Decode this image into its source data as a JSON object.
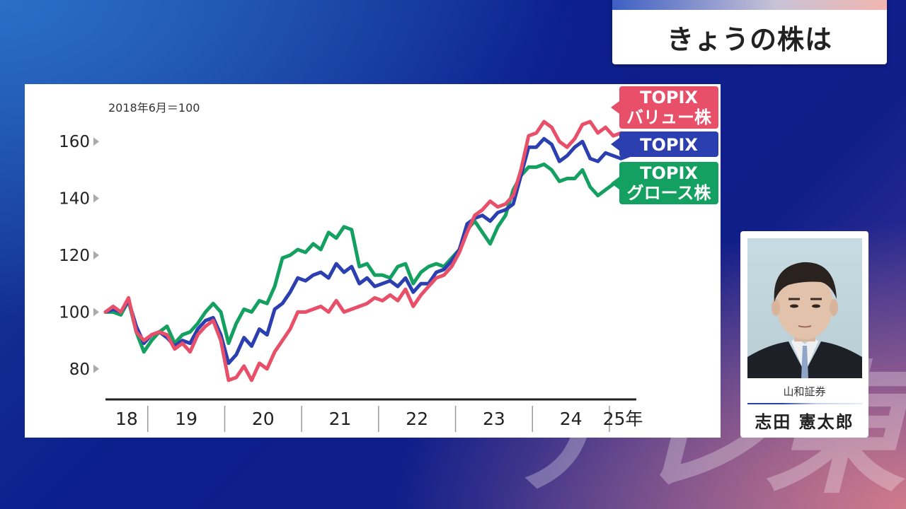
{
  "header": {
    "title": "きょうの株は"
  },
  "watermark": "テレ東",
  "chart_data": {
    "type": "line",
    "note": "2018年6月＝100",
    "y_ticks": [
      "80",
      "100",
      "120",
      "140",
      "160"
    ],
    "ylim": [
      70,
      170
    ],
    "x_tick_labels": [
      "18",
      "19",
      "20",
      "21",
      "22",
      "23",
      "24",
      "25年"
    ],
    "xlim": [
      2018.45,
      2025.35
    ],
    "series": [
      {
        "name": "TOPIX バリュー株",
        "label_lines": [
          "TOPIX",
          "バリュー株"
        ],
        "color": "#e8506a",
        "x": [
          2018.45,
          2018.55,
          2018.65,
          2018.75,
          2018.85,
          2018.95,
          2019.05,
          2019.15,
          2019.25,
          2019.35,
          2019.45,
          2019.55,
          2019.65,
          2019.75,
          2019.85,
          2019.95,
          2020.05,
          2020.15,
          2020.25,
          2020.35,
          2020.45,
          2020.55,
          2020.65,
          2020.75,
          2020.85,
          2020.95,
          2021.05,
          2021.15,
          2021.25,
          2021.35,
          2021.45,
          2021.55,
          2021.65,
          2021.75,
          2021.85,
          2021.95,
          2022.05,
          2022.15,
          2022.25,
          2022.35,
          2022.45,
          2022.55,
          2022.65,
          2022.75,
          2022.85,
          2022.95,
          2023.05,
          2023.15,
          2023.25,
          2023.35,
          2023.45,
          2023.55,
          2023.65,
          2023.75,
          2023.85,
          2023.95,
          2024.05,
          2024.15,
          2024.25,
          2024.35,
          2024.45,
          2024.55,
          2024.65,
          2024.75,
          2024.85,
          2024.95,
          2025.05,
          2025.15,
          2025.25
        ],
        "values": [
          100,
          102,
          100,
          105,
          93,
          90,
          92,
          93,
          92,
          87,
          89,
          86,
          92,
          95,
          97,
          90,
          76,
          77,
          81,
          76,
          82,
          80,
          86,
          90,
          94,
          100,
          100,
          101,
          102,
          100,
          104,
          100,
          101,
          102,
          103,
          105,
          104,
          106,
          104,
          108,
          102,
          106,
          109,
          112,
          113,
          116,
          121,
          128,
          134,
          136,
          139,
          137,
          138,
          141,
          150,
          162,
          163,
          167,
          165,
          160,
          158,
          161,
          166,
          167,
          163,
          165,
          162,
          163,
          162
        ]
      },
      {
        "name": "TOPIX",
        "label_lines": [
          "TOPIX"
        ],
        "color": "#2b3fb0",
        "x": [
          2018.45,
          2018.55,
          2018.65,
          2018.75,
          2018.85,
          2018.95,
          2019.05,
          2019.15,
          2019.25,
          2019.35,
          2019.45,
          2019.55,
          2019.65,
          2019.75,
          2019.85,
          2019.95,
          2020.05,
          2020.15,
          2020.25,
          2020.35,
          2020.45,
          2020.55,
          2020.65,
          2020.75,
          2020.85,
          2020.95,
          2021.05,
          2021.15,
          2021.25,
          2021.35,
          2021.45,
          2021.55,
          2021.65,
          2021.75,
          2021.85,
          2021.95,
          2022.05,
          2022.15,
          2022.25,
          2022.35,
          2022.45,
          2022.55,
          2022.65,
          2022.75,
          2022.85,
          2022.95,
          2023.05,
          2023.15,
          2023.25,
          2023.35,
          2023.45,
          2023.55,
          2023.65,
          2023.75,
          2023.85,
          2023.95,
          2024.05,
          2024.15,
          2024.25,
          2024.35,
          2024.45,
          2024.55,
          2024.65,
          2024.75,
          2024.85,
          2024.95,
          2025.05,
          2025.15,
          2025.25
        ],
        "values": [
          100,
          101,
          100,
          104,
          95,
          89,
          92,
          93,
          91,
          88,
          90,
          89,
          94,
          97,
          98,
          92,
          82,
          85,
          91,
          88,
          94,
          92,
          101,
          103,
          107,
          112,
          111,
          113,
          114,
          112,
          117,
          114,
          116,
          110,
          112,
          109,
          110,
          111,
          109,
          112,
          107,
          110,
          110,
          114,
          115,
          118,
          122,
          131,
          133,
          134,
          132,
          135,
          136,
          138,
          148,
          158,
          158,
          161,
          159,
          153,
          155,
          158,
          160,
          154,
          153,
          156,
          155,
          154,
          155
        ]
      },
      {
        "name": "TOPIX グロース株",
        "label_lines": [
          "TOPIX",
          "グロース株"
        ],
        "color": "#13a060",
        "x": [
          2018.45,
          2018.55,
          2018.65,
          2018.75,
          2018.85,
          2018.95,
          2019.05,
          2019.15,
          2019.25,
          2019.35,
          2019.45,
          2019.55,
          2019.65,
          2019.75,
          2019.85,
          2019.95,
          2020.05,
          2020.15,
          2020.25,
          2020.35,
          2020.45,
          2020.55,
          2020.65,
          2020.75,
          2020.85,
          2020.95,
          2021.05,
          2021.15,
          2021.25,
          2021.35,
          2021.45,
          2021.55,
          2021.65,
          2021.75,
          2021.85,
          2021.95,
          2022.05,
          2022.15,
          2022.25,
          2022.35,
          2022.45,
          2022.55,
          2022.65,
          2022.75,
          2022.85,
          2022.95,
          2023.05,
          2023.15,
          2023.25,
          2023.35,
          2023.45,
          2023.55,
          2023.65,
          2023.75,
          2023.85,
          2023.95,
          2024.05,
          2024.15,
          2024.25,
          2024.35,
          2024.45,
          2024.55,
          2024.65,
          2024.75,
          2024.85,
          2024.95,
          2025.05,
          2025.15,
          2025.25
        ],
        "values": [
          100,
          100,
          99,
          104,
          93,
          86,
          90,
          93,
          95,
          89,
          92,
          93,
          96,
          100,
          103,
          100,
          89,
          96,
          101,
          100,
          104,
          103,
          109,
          119,
          120,
          122,
          121,
          124,
          122,
          128,
          126,
          130,
          129,
          116,
          117,
          113,
          113,
          112,
          116,
          117,
          110,
          114,
          116,
          117,
          116,
          119,
          122,
          129,
          132,
          128,
          124,
          130,
          134,
          143,
          148,
          151,
          151,
          152,
          150,
          146,
          147,
          147,
          150,
          144,
          141,
          143,
          145,
          146,
          147
        ]
      }
    ]
  },
  "guest": {
    "company": "山和証券",
    "name": "志田 憲太郎"
  }
}
